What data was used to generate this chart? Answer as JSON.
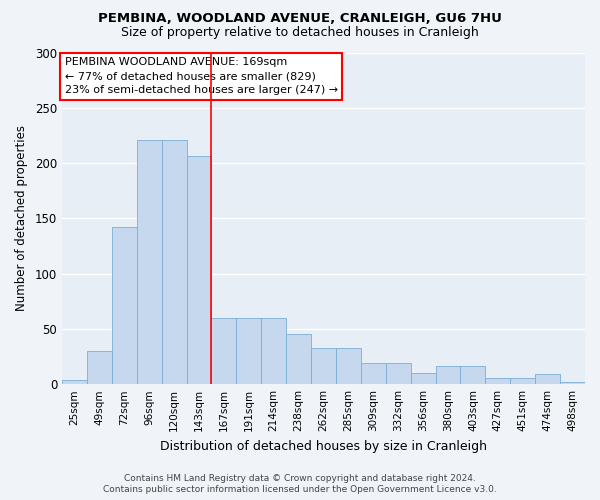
{
  "title1": "PEMBINA, WOODLAND AVENUE, CRANLEIGH, GU6 7HU",
  "title2": "Size of property relative to detached houses in Cranleigh",
  "xlabel": "Distribution of detached houses by size in Cranleigh",
  "ylabel": "Number of detached properties",
  "categories": [
    "25sqm",
    "49sqm",
    "72sqm",
    "96sqm",
    "120sqm",
    "143sqm",
    "167sqm",
    "191sqm",
    "214sqm",
    "238sqm",
    "262sqm",
    "285sqm",
    "309sqm",
    "332sqm",
    "356sqm",
    "380sqm",
    "403sqm",
    "427sqm",
    "451sqm",
    "474sqm",
    "498sqm"
  ],
  "values": [
    4,
    30,
    142,
    221,
    221,
    206,
    60,
    60,
    60,
    45,
    33,
    33,
    19,
    19,
    10,
    16,
    16,
    6,
    6,
    9,
    2
  ],
  "bar_color": "#c5d8ed",
  "bar_edge_color": "#7aaed6",
  "ax_background_color": "#e8eef5",
  "fig_background_color": "#f0f4f8",
  "grid_color": "#ffffff",
  "vline_x_index": 5.5,
  "annotation_text": "PEMBINA WOODLAND AVENUE: 169sqm\n← 77% of detached houses are smaller (829)\n23% of semi-detached houses are larger (247) →",
  "footer1": "Contains HM Land Registry data © Crown copyright and database right 2024.",
  "footer2": "Contains public sector information licensed under the Open Government Licence v3.0.",
  "ylim": [
    0,
    300
  ],
  "yticks": [
    0,
    50,
    100,
    150,
    200,
    250,
    300
  ]
}
